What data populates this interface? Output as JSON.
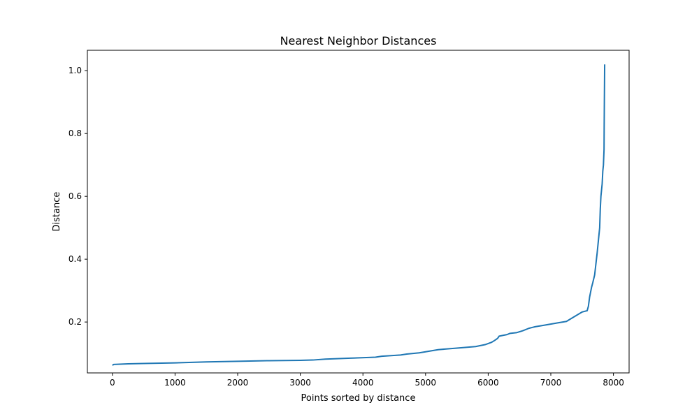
{
  "chart_data": {
    "type": "line",
    "title": "Nearest Neighbor Distances",
    "xlabel": "Points sorted by distance",
    "ylabel": "Distance",
    "xlim": [
      -400,
      8250
    ],
    "ylim": [
      0.038,
      1.065
    ],
    "xticks": [
      0,
      1000,
      2000,
      3000,
      4000,
      5000,
      6000,
      7000,
      8000
    ],
    "xtick_labels": [
      "0",
      "1000",
      "2000",
      "3000",
      "4000",
      "5000",
      "6000",
      "7000",
      "8000"
    ],
    "yticks": [
      0.2,
      0.4,
      0.6,
      0.8,
      1.0
    ],
    "ytick_labels": [
      "0.2",
      "0.4",
      "0.6",
      "0.8",
      "1.0"
    ],
    "grid": false,
    "color": "#1f77b4",
    "series": [
      {
        "x": [
          0,
          20,
          250,
          500,
          1000,
          1500,
          2000,
          2500,
          3000,
          3200,
          3400,
          3800,
          4200,
          4300,
          4600,
          4700,
          4900,
          5200,
          5500,
          5800,
          5950,
          6050,
          6100,
          6150,
          6175,
          6250,
          6300,
          6350,
          6450,
          6550,
          6650,
          6750,
          6900,
          7100,
          7250,
          7300,
          7400,
          7500,
          7580,
          7600,
          7620,
          7650,
          7670,
          7700,
          7720,
          7740,
          7760,
          7780,
          7790,
          7800,
          7820,
          7830,
          7840,
          7850,
          7852,
          7855,
          7860
        ],
        "y": [
          0.062,
          0.065,
          0.067,
          0.068,
          0.07,
          0.073,
          0.075,
          0.077,
          0.078,
          0.079,
          0.082,
          0.085,
          0.088,
          0.091,
          0.095,
          0.098,
          0.102,
          0.112,
          0.117,
          0.122,
          0.128,
          0.135,
          0.141,
          0.148,
          0.155,
          0.158,
          0.16,
          0.164,
          0.166,
          0.172,
          0.18,
          0.185,
          0.19,
          0.197,
          0.202,
          0.208,
          0.22,
          0.232,
          0.236,
          0.25,
          0.28,
          0.31,
          0.325,
          0.35,
          0.385,
          0.42,
          0.46,
          0.5,
          0.56,
          0.6,
          0.64,
          0.68,
          0.7,
          0.75,
          0.82,
          0.9,
          1.02
        ]
      }
    ]
  }
}
